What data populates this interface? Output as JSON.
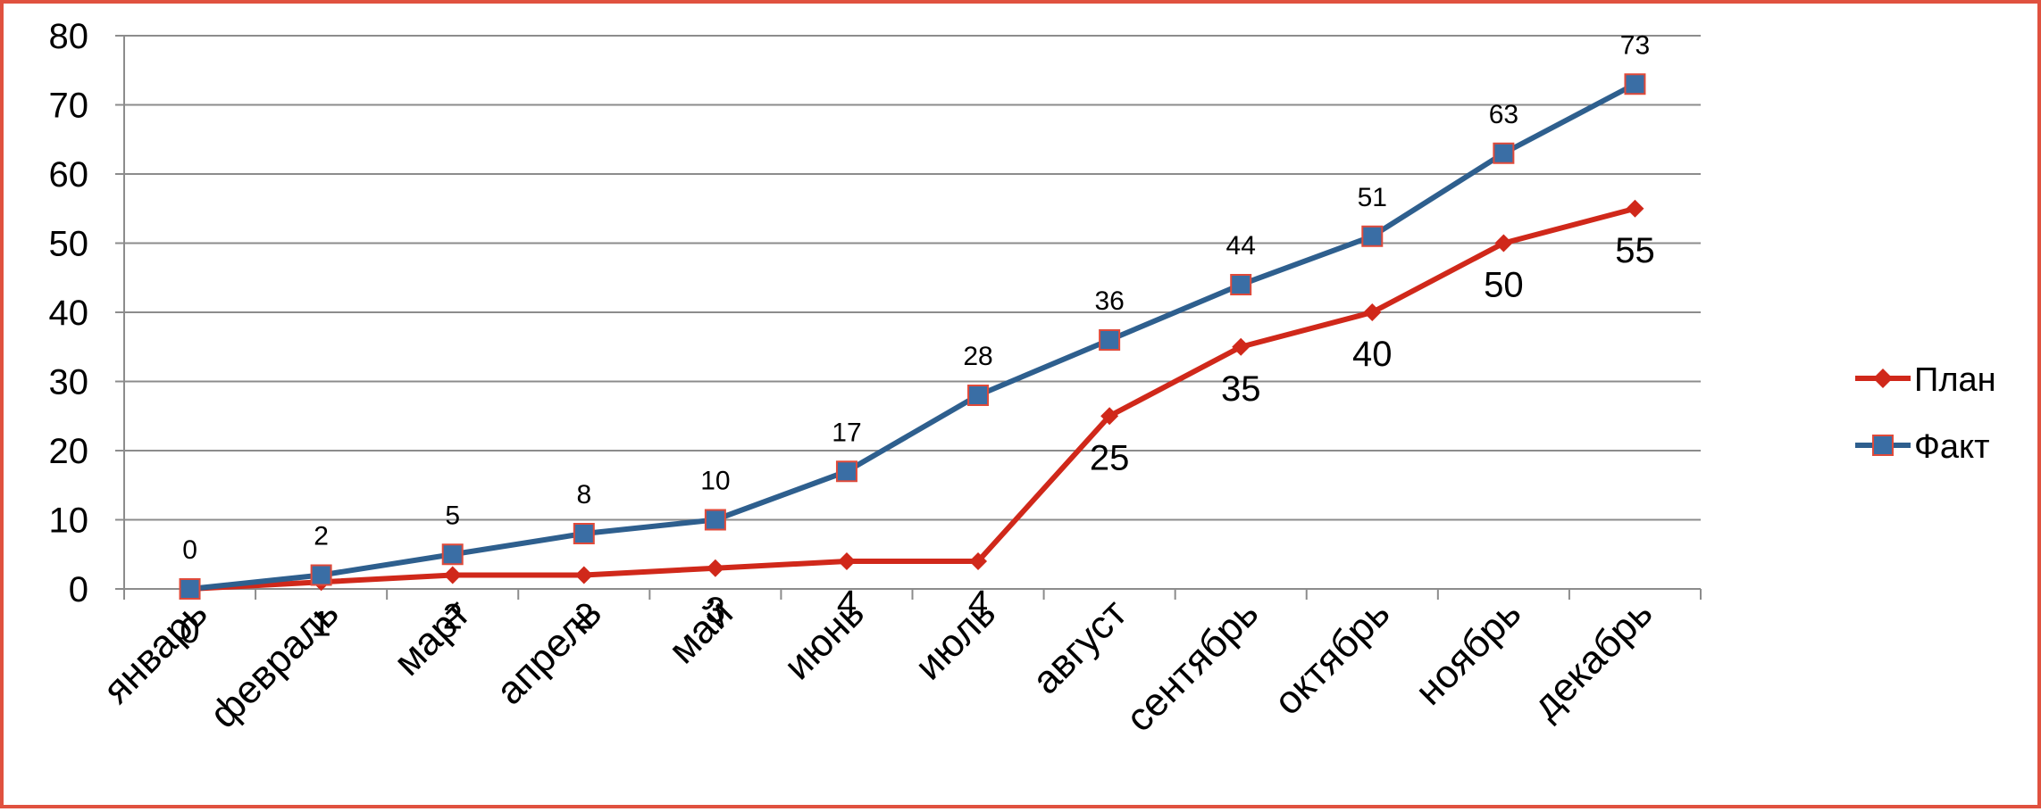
{
  "chart_data": {
    "type": "line",
    "title": "",
    "xlabel": "",
    "ylabel": "",
    "ylim": [
      0,
      80
    ],
    "yticks": [
      0,
      10,
      20,
      30,
      40,
      50,
      60,
      70,
      80
    ],
    "grid": true,
    "legend_position": "right",
    "categories": [
      "январь",
      "февраль",
      "март",
      "апрель",
      "май",
      "июнь",
      "июль",
      "август",
      "сентябрь",
      "октябрь",
      "ноябрь",
      "декабрь"
    ],
    "series": [
      {
        "name": "План",
        "values": [
          0,
          1,
          2,
          2,
          3,
          4,
          4,
          25,
          35,
          40,
          50,
          55
        ],
        "color": "#d0281a",
        "marker": "diamond"
      },
      {
        "name": "Факт",
        "values": [
          0,
          2,
          5,
          8,
          10,
          17,
          28,
          36,
          44,
          51,
          63,
          73
        ],
        "color": "#2e5f8e",
        "marker": "square"
      }
    ]
  },
  "colors": {
    "frame_border": "#e0513f",
    "grid": "#8c8c8c",
    "fact_marker_fill": "#3a6ea5",
    "fact_marker_stroke": "#e04a3a"
  }
}
